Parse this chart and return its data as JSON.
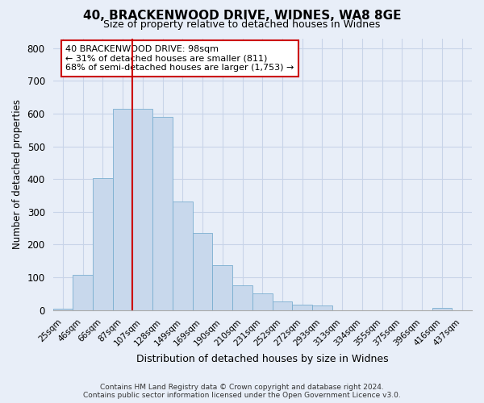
{
  "title": "40, BRACKENWOOD DRIVE, WIDNES, WA8 8GE",
  "subtitle": "Size of property relative to detached houses in Widnes",
  "xlabel": "Distribution of detached houses by size in Widnes",
  "ylabel": "Number of detached properties",
  "bar_labels": [
    "25sqm",
    "46sqm",
    "66sqm",
    "87sqm",
    "107sqm",
    "128sqm",
    "149sqm",
    "169sqm",
    "190sqm",
    "210sqm",
    "231sqm",
    "252sqm",
    "272sqm",
    "293sqm",
    "313sqm",
    "334sqm",
    "355sqm",
    "375sqm",
    "396sqm",
    "416sqm",
    "437sqm"
  ],
  "bar_values": [
    5,
    107,
    403,
    615,
    615,
    590,
    332,
    236,
    136,
    76,
    50,
    25,
    15,
    14,
    0,
    0,
    0,
    0,
    0,
    7,
    0
  ],
  "bar_color": "#c8d8ec",
  "bar_edge_color": "#7aaed0",
  "vline_x_index": 4,
  "vline_color": "#cc0000",
  "ylim": [
    0,
    830
  ],
  "yticks": [
    0,
    100,
    200,
    300,
    400,
    500,
    600,
    700,
    800
  ],
  "annotation_box_text": "40 BRACKENWOOD DRIVE: 98sqm\n← 31% of detached houses are smaller (811)\n68% of semi-detached houses are larger (1,753) →",
  "footer_line1": "Contains HM Land Registry data © Crown copyright and database right 2024.",
  "footer_line2": "Contains public sector information licensed under the Open Government Licence v3.0.",
  "background_color": "#e8eef8",
  "plot_bg_color": "#e8eef8",
  "grid_color": "#c8d4e8",
  "title_fontsize": 11,
  "subtitle_fontsize": 9
}
